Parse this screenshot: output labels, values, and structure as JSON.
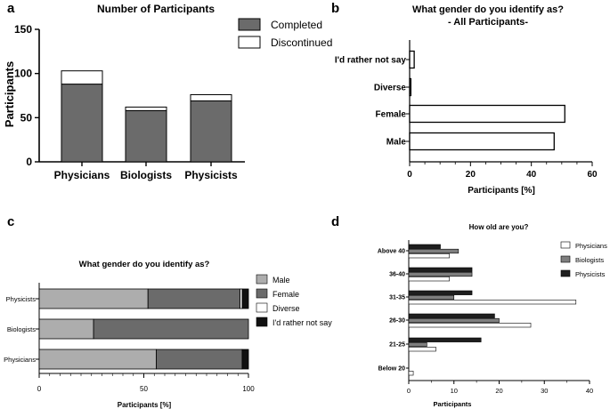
{
  "panel_labels": [
    "a",
    "b",
    "c",
    "d"
  ],
  "colors": {
    "completed": "#6b6b6b",
    "discontinued": "#ffffff",
    "male": "#adadad",
    "female": "#6b6b6b",
    "diverse": "#ffffff",
    "rather_not_say": "#111111",
    "physicians": "#ffffff",
    "biologists": "#7f7f7f",
    "physicists": "#1e1e1e"
  },
  "chart_data": [
    {
      "panel": "a",
      "type": "bar",
      "stacked": true,
      "title": "Number of Participants",
      "xlabel": "",
      "ylabel": "Participants",
      "ylim": [
        0,
        150
      ],
      "yticks": [
        "0",
        "50",
        "100",
        "150"
      ],
      "categories": [
        "Physicians",
        "Biologists",
        "Physicists"
      ],
      "series": [
        {
          "name": "Completed",
          "values": [
            88,
            58,
            69
          ]
        },
        {
          "name": "Discontinued",
          "values": [
            15,
            4,
            7
          ]
        }
      ],
      "legend": "top-right"
    },
    {
      "panel": "b",
      "type": "bar",
      "orientation": "horizontal",
      "title": "What gender do you identify as?",
      "subtitle": "- All Participants-",
      "xlabel": "Participants [%]",
      "ylabel": "",
      "xlim": [
        0,
        60
      ],
      "xticks": [
        "0",
        "20",
        "40",
        "60"
      ],
      "categories": [
        "I'd rather not say",
        "Diverse",
        "Female",
        "Male"
      ],
      "values": [
        1.5,
        0.4,
        51,
        47.5
      ]
    },
    {
      "panel": "c",
      "type": "bar",
      "orientation": "horizontal",
      "stacked": true,
      "title": "What gender do you identify as?",
      "xlabel": "Participants [%]",
      "ylabel": "",
      "xlim": [
        0,
        100
      ],
      "xticks": [
        "0",
        "50",
        "100"
      ],
      "categories": [
        "Physicists",
        "Biologists",
        "Physicians"
      ],
      "series": [
        {
          "name": "Male",
          "values": [
            52,
            26,
            56
          ]
        },
        {
          "name": "Female",
          "values": [
            44,
            74,
            41
          ]
        },
        {
          "name": "Diverse",
          "values": [
            1,
            0,
            0
          ]
        },
        {
          "name": "I'd rather not say",
          "values": [
            3,
            0,
            3
          ]
        }
      ],
      "legend": "right"
    },
    {
      "panel": "d",
      "type": "bar",
      "orientation": "horizontal",
      "title": "How old are you?",
      "xlabel": "Participants",
      "ylabel": "",
      "xlim": [
        0,
        40
      ],
      "xticks": [
        "0",
        "10",
        "20",
        "30",
        "40"
      ],
      "categories": [
        "Above 40",
        "36-40",
        "31-35",
        "26-30",
        "21-25",
        "Below 20"
      ],
      "series": [
        {
          "name": "Physicists",
          "values": [
            7,
            14,
            14,
            19,
            16,
            0
          ]
        },
        {
          "name": "Biologists",
          "values": [
            11,
            14,
            10,
            20,
            4,
            0
          ]
        },
        {
          "name": "Physicians",
          "values": [
            9,
            9,
            37,
            27,
            6,
            1
          ]
        }
      ],
      "legend": "top-right"
    }
  ]
}
